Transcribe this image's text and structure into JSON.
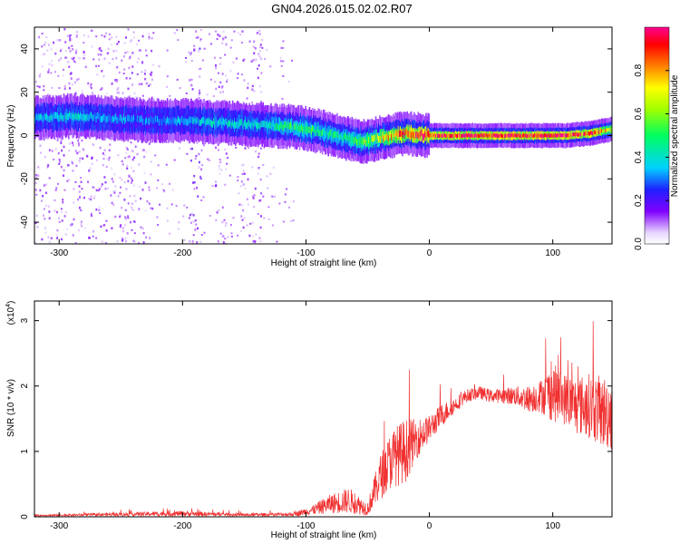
{
  "title": "GN04.2026.015.02.02.R07",
  "chart_data": [
    {
      "type": "heatmap",
      "name": "spectrogram",
      "xlabel": "Height of straight line (km)",
      "ylabel": "Frequency (Hz)",
      "xlim": [
        -320,
        148
      ],
      "ylim": [
        -50,
        50
      ],
      "xticks": [
        -300,
        -200,
        -100,
        0,
        100
      ],
      "xtick_labels": [
        "-300",
        "-200",
        "-100",
        "0",
        "100"
      ],
      "yticks": [
        -40,
        -20,
        0,
        20,
        40
      ],
      "ytick_labels": [
        "-40",
        "-20",
        "0",
        "20",
        "40"
      ],
      "colorbar": {
        "label": "Normalized spectral amplitude",
        "range": [
          0,
          1
        ],
        "ticks": [
          0.0,
          0.2,
          0.4,
          0.6,
          0.8
        ],
        "tick_labels": [
          "0.0",
          "0.2",
          "0.4",
          "0.6",
          "0.8"
        ]
      },
      "ridge": {
        "x": [
          -320,
          -290,
          -260,
          -230,
          -200,
          -170,
          -140,
          -110,
          -90,
          -70,
          -55,
          -40,
          -20,
          0,
          20,
          50,
          80,
          110,
          130,
          148
        ],
        "freq": [
          8,
          9,
          8,
          7,
          7,
          6,
          5,
          4,
          2,
          -1,
          -3,
          -1,
          1,
          0,
          0,
          0,
          0,
          0,
          1,
          3
        ],
        "amplitude": [
          0.35,
          0.4,
          0.35,
          0.3,
          0.35,
          0.4,
          0.4,
          0.5,
          0.5,
          0.45,
          0.55,
          0.7,
          0.9,
          0.95,
          0.95,
          0.95,
          0.95,
          0.95,
          0.9,
          0.7
        ]
      },
      "noise_bands": [
        {
          "x": [
            -320,
            -225
          ],
          "amplitude": 0.12
        },
        {
          "x": [
            -195,
            -185
          ],
          "amplitude": 0.15
        },
        {
          "x": [
            -175,
            -165
          ],
          "amplitude": 0.12
        },
        {
          "x": [
            -153,
            -135
          ],
          "amplitude": 0.12
        }
      ]
    },
    {
      "type": "line",
      "name": "snr",
      "xlabel": "Height of straight line (km)",
      "ylabel": "SNR (10 * v/v)",
      "scale_label": "(x10",
      "scale_exp": "4",
      "scale_close": ")",
      "xlim": [
        -320,
        148
      ],
      "ylim": [
        0,
        3.3
      ],
      "xticks": [
        -300,
        -200,
        -100,
        0,
        100
      ],
      "xtick_labels": [
        "-300",
        "-200",
        "-100",
        "0",
        "100"
      ],
      "yticks": [
        0,
        1,
        2,
        3
      ],
      "ytick_labels": [
        "0",
        "1",
        "2",
        "3"
      ],
      "color": "#f03030",
      "envelope": {
        "x": [
          -320,
          -280,
          -200,
          -150,
          -110,
          -95,
          -80,
          -65,
          -50,
          -40,
          -30,
          -20,
          -10,
          0,
          10,
          20,
          30,
          40,
          50,
          60,
          70,
          80,
          90,
          100,
          110,
          120,
          130,
          140,
          148
        ],
        "mean": [
          0.02,
          0.03,
          0.05,
          0.03,
          0.04,
          0.1,
          0.2,
          0.25,
          0.12,
          0.6,
          0.9,
          1.0,
          1.2,
          1.35,
          1.55,
          1.7,
          1.85,
          1.9,
          1.85,
          1.85,
          1.85,
          1.8,
          1.85,
          1.9,
          1.8,
          1.7,
          1.7,
          1.6,
          1.6
        ],
        "spread": [
          0.01,
          0.02,
          0.04,
          0.02,
          0.03,
          0.07,
          0.15,
          0.2,
          0.1,
          0.35,
          0.45,
          0.5,
          0.3,
          0.2,
          0.18,
          0.12,
          0.1,
          0.1,
          0.1,
          0.12,
          0.15,
          0.2,
          0.25,
          0.45,
          0.4,
          0.45,
          0.5,
          0.55,
          0.6
        ]
      }
    }
  ]
}
